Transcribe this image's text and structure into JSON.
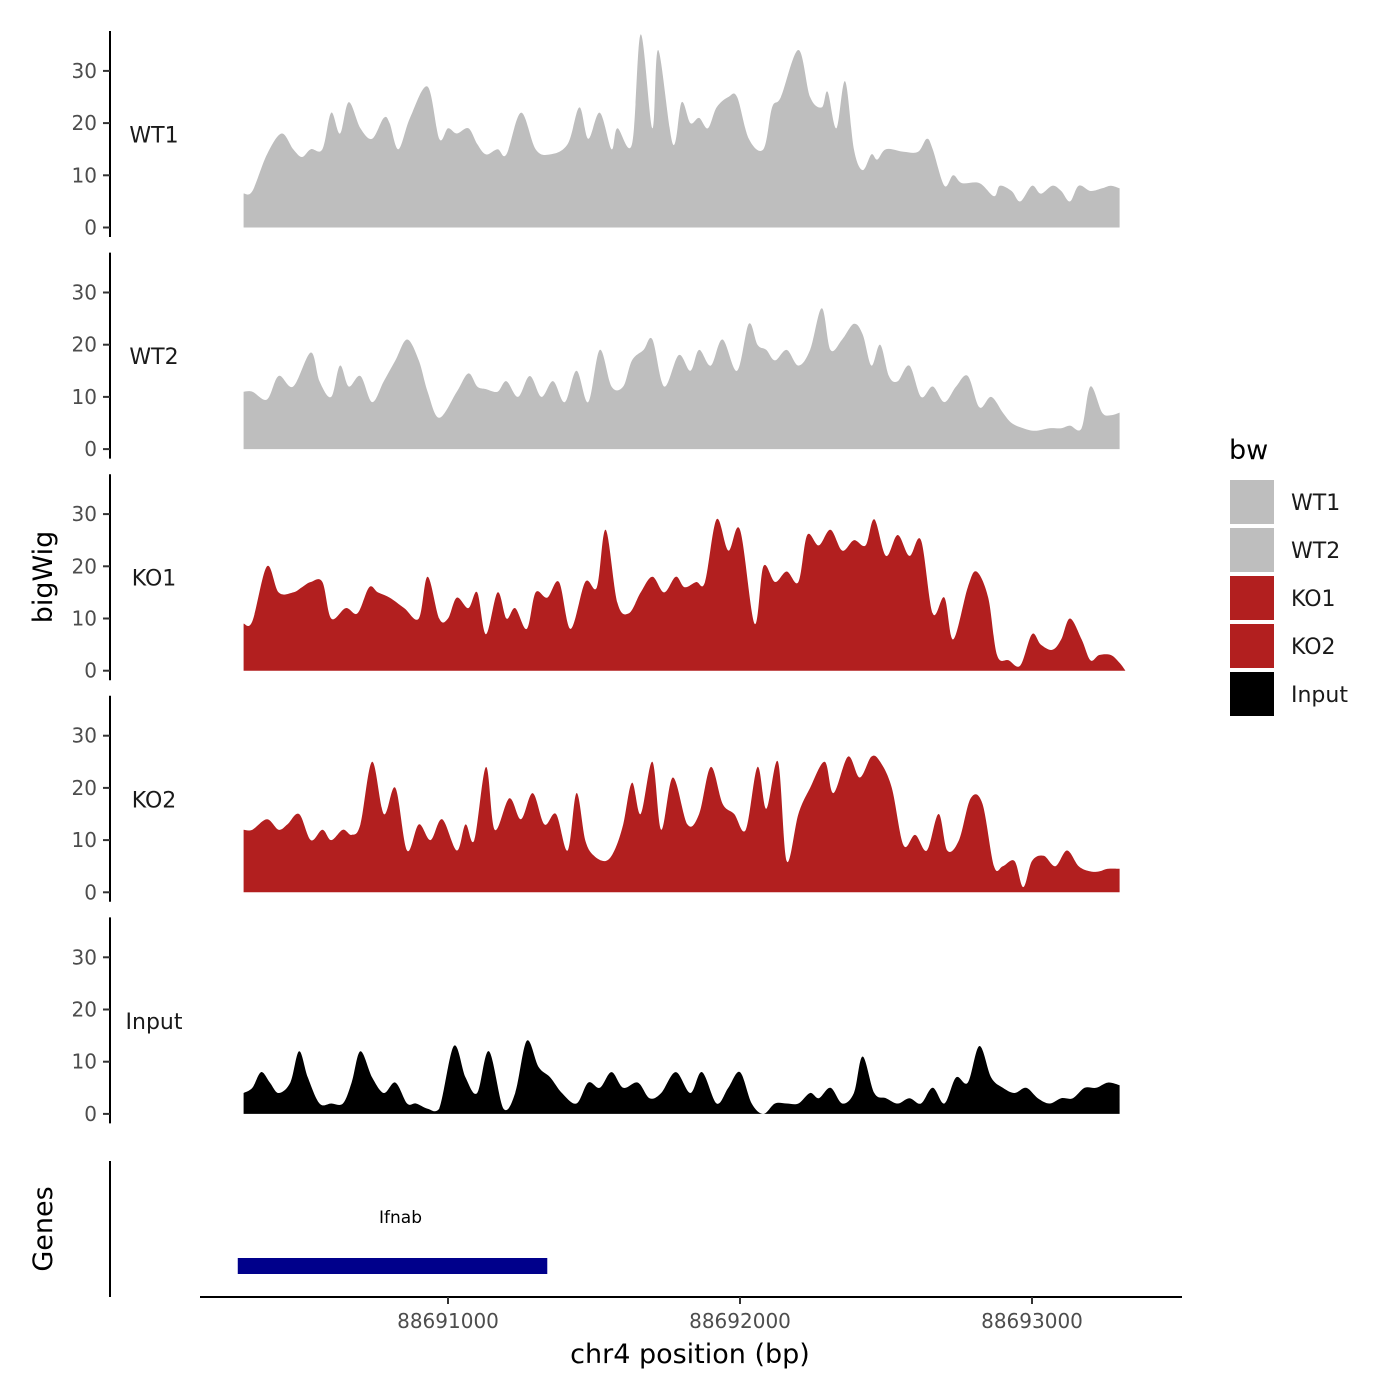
{
  "chart_data": {
    "type": "area",
    "ylabel": "bigWig",
    "xlabel": "chr4 position (bp)",
    "xlim": [
      88690060,
      88693500
    ],
    "ylim": [
      0,
      37
    ],
    "yticks": [
      0,
      10,
      20,
      30
    ],
    "xticks": [
      88691000,
      88692000,
      88693000
    ],
    "xtick_labels": [
      "88691000",
      "88692000",
      "88693000"
    ],
    "legend_title": "bw",
    "colors": {
      "WT1": "#bebebe",
      "WT2": "#bebebe",
      "KO1": "#b21f1f",
      "KO2": "#b21f1f",
      "Input": "#000000"
    },
    "tracks": [
      {
        "name": "WT1",
        "x": [
          88690300,
          88690330,
          88690380,
          88690430,
          88690470,
          88690500,
          88690530,
          88690570,
          88690600,
          88690630,
          88690660,
          88690700,
          88690740,
          88690780,
          88690800,
          88690830,
          88690870,
          88690930,
          88690970,
          88691000,
          88691030,
          88691070,
          88691100,
          88691130,
          88691170,
          88691200,
          88691250,
          88691300,
          88691350,
          88691410,
          88691450,
          88691480,
          88691520,
          88691560,
          88691580,
          88691630,
          88691660,
          88691700,
          88691720,
          88691770,
          88691800,
          88691830,
          88691860,
          88691890,
          88691920,
          88691960,
          88691990,
          88692030,
          88692080,
          88692110,
          88692140,
          88692200,
          88692240,
          88692280,
          88692300,
          88692330,
          88692360,
          88692390,
          88692420,
          88692450,
          88692470,
          88692500,
          88692560,
          88692610,
          88692640,
          88692660,
          88692700,
          88692730,
          88692760,
          88692820,
          88692870,
          88692890,
          88692930,
          88692960,
          88693000,
          88693030,
          88693070,
          88693100,
          88693130,
          88693160,
          88693200,
          88693240,
          88693270,
          88693300
        ],
        "y": [
          6.5,
          7,
          14,
          18,
          15,
          13.5,
          15,
          15,
          22,
          18,
          24,
          19,
          17,
          21,
          20,
          15,
          21,
          27,
          17,
          19,
          18,
          19,
          16,
          14,
          15,
          14,
          22,
          15,
          14,
          16,
          23,
          17,
          22,
          15,
          19,
          16,
          37,
          19,
          34,
          16,
          24,
          20,
          21,
          19,
          23,
          25,
          25,
          17,
          15,
          23,
          25,
          34,
          25,
          23,
          26,
          19,
          28,
          15,
          11,
          14,
          13,
          15,
          14.5,
          14.5,
          17,
          15,
          8,
          10,
          8.5,
          8.5,
          6,
          8,
          7,
          5,
          8,
          6.5,
          8,
          7,
          5,
          8,
          7,
          7.5,
          8,
          7.5
        ]
      },
      {
        "name": "WT2",
        "x": [
          88690300,
          88690330,
          88690380,
          88690420,
          88690470,
          88690530,
          88690560,
          88690600,
          88690630,
          88690660,
          88690700,
          88690740,
          88690780,
          88690820,
          88690860,
          88690900,
          88690930,
          88690970,
          88691030,
          88691070,
          88691100,
          88691130,
          88691170,
          88691200,
          88691240,
          88691280,
          88691320,
          88691360,
          88691400,
          88691440,
          88691480,
          88691520,
          88691560,
          88691600,
          88691630,
          88691670,
          88691700,
          88691740,
          88691790,
          88691830,
          88691860,
          88691900,
          88691940,
          88691990,
          88692030,
          88692060,
          88692090,
          88692120,
          88692160,
          88692200,
          88692240,
          88692280,
          88692310,
          88692350,
          88692390,
          88692420,
          88692450,
          88692480,
          88692510,
          88692540,
          88692580,
          88692620,
          88692660,
          88692700,
          88692740,
          88692780,
          88692820,
          88692860,
          88692900,
          88692930,
          88692970,
          88693010,
          88693060,
          88693100,
          88693130,
          88693170,
          88693200,
          88693240,
          88693270,
          88693300
        ],
        "y": [
          11,
          11,
          9.5,
          14,
          12,
          18.5,
          13,
          10,
          16,
          12,
          14,
          9,
          13,
          17,
          21,
          17,
          11,
          6,
          11,
          14.5,
          12,
          11.5,
          11,
          13,
          10,
          14,
          10,
          13,
          9,
          15,
          9,
          19,
          12,
          12,
          17,
          19,
          21,
          12,
          18,
          15,
          19,
          16,
          21,
          15,
          24,
          20,
          19,
          17,
          19,
          16,
          19,
          27,
          19,
          21,
          24,
          22,
          16,
          20,
          14,
          13,
          16,
          10,
          12,
          9,
          12,
          14,
          8,
          10,
          7,
          5,
          4,
          3.5,
          4,
          4,
          4.5,
          4,
          12,
          7,
          6.5,
          7
        ]
      },
      {
        "name": "KO1",
        "x": [
          88690300,
          88690330,
          88690380,
          88690420,
          88690470,
          88690500,
          88690530,
          88690570,
          88690600,
          88690650,
          88690690,
          88690730,
          88690760,
          88690800,
          88690850,
          88690900,
          88690930,
          88690970,
          88691000,
          88691030,
          88691070,
          88691100,
          88691130,
          88691170,
          88691200,
          88691230,
          88691270,
          88691300,
          88691340,
          88691380,
          88691420,
          88691470,
          88691510,
          88691540,
          88691580,
          88691620,
          88691660,
          88691700,
          88691740,
          88691780,
          88691810,
          88691850,
          88691880,
          88691920,
          88691960,
          88692000,
          88692050,
          88692080,
          88692120,
          88692160,
          88692200,
          88692230,
          88692270,
          88692310,
          88692350,
          88692390,
          88692430,
          88692460,
          88692500,
          88692540,
          88692580,
          88692620,
          88692660,
          88692700,
          88692730,
          88692780,
          88692810,
          88692850,
          88692880,
          88692920,
          88692960,
          88693000,
          88693030,
          88693070,
          88693100,
          88693130,
          88693170,
          88693200,
          88693230,
          88693270,
          88693300,
          88693320
        ],
        "y": [
          9,
          9.5,
          20,
          15,
          15,
          16,
          17,
          17,
          10,
          12,
          11,
          16,
          15,
          14,
          12,
          10,
          18,
          10,
          10,
          14,
          12,
          15,
          7,
          15,
          10,
          12,
          8,
          15,
          14,
          17,
          8,
          17,
          16,
          27,
          13,
          11,
          15,
          18,
          15,
          18,
          16,
          17,
          17,
          29,
          23,
          27,
          9,
          20,
          17,
          19,
          17,
          26,
          24,
          27,
          23,
          25,
          24,
          29,
          22,
          26,
          22,
          25,
          11,
          14,
          6,
          16,
          19,
          14,
          3,
          2,
          1,
          7,
          5,
          4,
          6,
          10,
          6,
          2,
          3,
          3,
          1.5,
          0
        ]
      },
      {
        "name": "KO2",
        "x": [
          88690300,
          88690330,
          88690380,
          88690420,
          88690450,
          88690490,
          88690530,
          88690570,
          88690600,
          88690640,
          88690670,
          88690700,
          88690740,
          88690780,
          88690820,
          88690860,
          88690900,
          88690940,
          88690980,
          88691030,
          88691060,
          88691090,
          88691130,
          88691160,
          88691210,
          88691250,
          88691290,
          88691330,
          88691370,
          88691410,
          88691440,
          88691470,
          88691500,
          88691540,
          88691570,
          88691600,
          88691630,
          88691660,
          88691700,
          88691730,
          88691770,
          88691820,
          88691860,
          88691900,
          88691940,
          88691980,
          88692020,
          88692060,
          88692090,
          88692130,
          88692160,
          88692200,
          88692240,
          88692290,
          88692320,
          88692370,
          88692410,
          88692450,
          88692480,
          88692520,
          88692560,
          88692600,
          88692640,
          88692680,
          88692710,
          88692750,
          88692790,
          88692830,
          88692870,
          88692900,
          88692940,
          88692970,
          88693000,
          88693040,
          88693080,
          88693120,
          88693160,
          88693200,
          88693230,
          88693260,
          88693300
        ],
        "y": [
          12,
          12,
          14,
          12,
          13,
          15,
          10,
          12,
          10,
          12,
          11,
          13,
          25,
          15,
          20,
          8,
          13,
          10,
          14,
          8,
          13,
          10,
          24,
          12,
          18,
          14,
          19,
          13,
          15,
          8,
          19,
          10,
          7,
          6,
          8,
          13,
          21,
          15,
          25,
          12,
          22,
          13,
          15,
          24,
          17,
          15,
          12,
          24,
          16,
          25,
          6,
          15,
          20,
          25,
          19,
          26,
          22,
          26,
          25,
          20,
          9,
          11,
          8,
          15,
          8,
          10,
          18,
          17,
          5,
          5,
          6,
          1,
          6,
          7,
          5,
          8,
          5,
          4,
          4,
          4.5,
          4.5
        ]
      },
      {
        "name": "Input",
        "x": [
          88690300,
          88690330,
          88690360,
          88690390,
          88690420,
          88690460,
          88690490,
          88690520,
          88690560,
          88690600,
          88690640,
          88690670,
          88690700,
          88690740,
          88690780,
          88690820,
          88690860,
          88690890,
          88690930,
          88690970,
          88691020,
          88691060,
          88691100,
          88691140,
          88691190,
          88691230,
          88691270,
          88691310,
          88691350,
          88691390,
          88691440,
          88691480,
          88691520,
          88691560,
          88691600,
          88691650,
          88691690,
          88691730,
          88691780,
          88691830,
          88691870,
          88691920,
          88691960,
          88692000,
          88692040,
          88692080,
          88692120,
          88692160,
          88692200,
          88692240,
          88692270,
          88692310,
          88692350,
          88692390,
          88692420,
          88692460,
          88692500,
          88692540,
          88692580,
          88692620,
          88692660,
          88692700,
          88692740,
          88692780,
          88692820,
          88692860,
          88692900,
          88692940,
          88692980,
          88693020,
          88693060,
          88693100,
          88693140,
          88693180,
          88693220,
          88693260,
          88693300
        ],
        "y": [
          4,
          5,
          8,
          6,
          4,
          6,
          12,
          7,
          2,
          2,
          2,
          6,
          12,
          7,
          4,
          6,
          2,
          2,
          1,
          1,
          13,
          7,
          4,
          12,
          1,
          4,
          14,
          9,
          7,
          4,
          2,
          6,
          5,
          8,
          5,
          6,
          3,
          4,
          8,
          4,
          8,
          2,
          5,
          8,
          2,
          0,
          2,
          2,
          2,
          4,
          3,
          5,
          2,
          4,
          11,
          4,
          3,
          2,
          3,
          2,
          5,
          2,
          7,
          6,
          13,
          7,
          5,
          4,
          5,
          3,
          2,
          3,
          3,
          5,
          5,
          6,
          5.5
        ]
      }
    ]
  },
  "genes": {
    "label": "Genes",
    "items": [
      {
        "name": "Ifnab",
        "start": 88690280,
        "end": 88691340,
        "color": "#00008b"
      }
    ]
  }
}
